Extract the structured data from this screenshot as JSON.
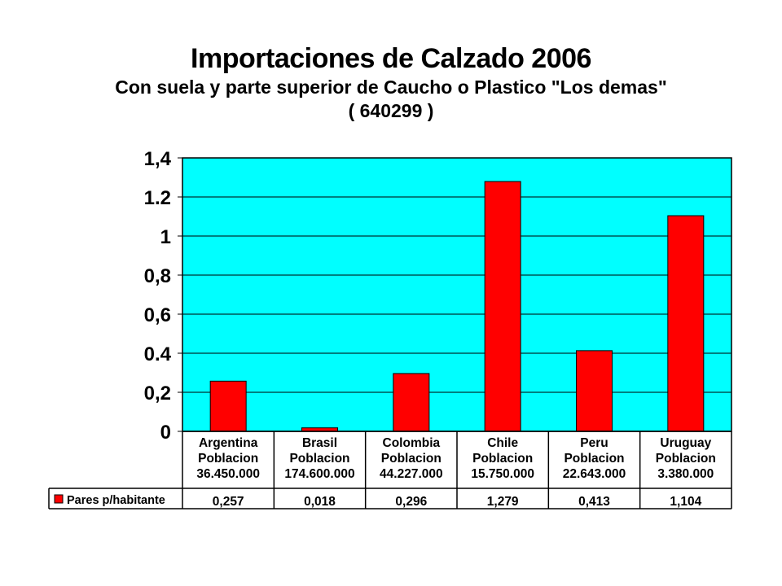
{
  "chart_data": {
    "type": "bar",
    "title": "Importaciones de Calzado 2006",
    "subtitle": "Con suela y parte superior de Caucho o Plastico \"Los demas\"",
    "subtitle2": "( 640299 )",
    "categories": [
      [
        "Argentina",
        "Poblacion",
        "36.450.000"
      ],
      [
        "Brasil",
        "Poblacion",
        "174.600.000"
      ],
      [
        "Colombia",
        "Poblacion",
        "44.227.000"
      ],
      [
        "Chile",
        "Poblacion",
        "15.750.000"
      ],
      [
        "Peru",
        "Poblacion",
        "22.643.000"
      ],
      [
        "Uruguay",
        "Poblacion",
        "3.380.000"
      ]
    ],
    "series": [
      {
        "name": "Pares p/habitante",
        "values": [
          0.257,
          0.018,
          0.296,
          1.279,
          0.413,
          1.104
        ],
        "value_labels": [
          "0,257",
          "0,018",
          "0,296",
          "1,279",
          "0,413",
          "1,104"
        ]
      }
    ],
    "ylim": [
      0,
      1.4
    ],
    "ytick_values": [
      0,
      0.2,
      0.4,
      0.6,
      0.8,
      1.0,
      1.2,
      1.4
    ],
    "ytick_labels": [
      "0",
      "0,2",
      "0.4",
      "0,6",
      "0,8",
      "1",
      "1.2",
      "1,4"
    ],
    "grid": true,
    "legend": "data-table",
    "colors": {
      "plot_background": "#00ffff",
      "bar": "#ff0000",
      "grid": "#000000"
    }
  }
}
